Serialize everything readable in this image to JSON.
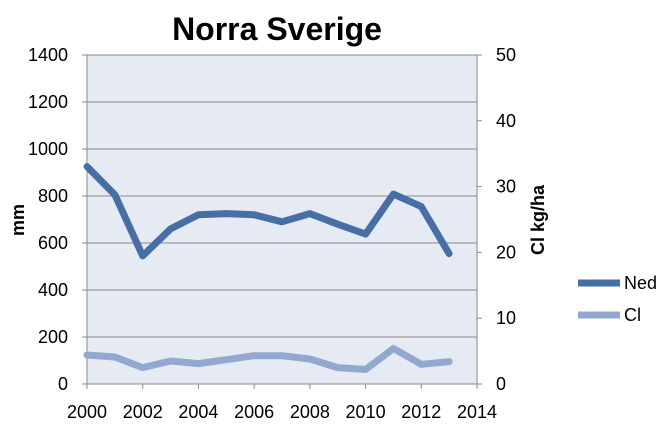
{
  "chart_data": {
    "type": "line",
    "title": "Norra Sverige",
    "xlabel": "",
    "ylabel": "mm",
    "y2label": "Cl kg/ha",
    "xlim": [
      2000,
      2014
    ],
    "ylim": [
      0,
      1400
    ],
    "y2lim": [
      0,
      50
    ],
    "x_ticks": [
      "2000",
      "2002",
      "2004",
      "2006",
      "2008",
      "2010",
      "2012",
      "2014"
    ],
    "y_ticks": [
      "0",
      "200",
      "400",
      "600",
      "800",
      "1000",
      "1200",
      "1400"
    ],
    "y2_ticks": [
      "0",
      "10",
      "20",
      "30",
      "40",
      "50"
    ],
    "grid": "horizontal",
    "legend_position": "right",
    "background": "#e6ebf3",
    "x": [
      2000,
      2001,
      2002,
      2003,
      2004,
      2005,
      2006,
      2007,
      2008,
      2009,
      2010,
      2011,
      2012,
      2013
    ],
    "series": [
      {
        "name": "Ned",
        "axis": "left",
        "color": "#4670a5",
        "values": [
          925,
          805,
          545,
          660,
          720,
          725,
          720,
          690,
          725,
          680,
          638,
          808,
          755,
          555
        ]
      },
      {
        "name": "Cl",
        "axis": "right",
        "color": "#91a8cf",
        "values": [
          4.4,
          4.1,
          2.5,
          3.5,
          3.1,
          3.7,
          4.3,
          4.3,
          3.8,
          2.5,
          2.2,
          5.4,
          3.0,
          3.4
        ]
      }
    ]
  }
}
